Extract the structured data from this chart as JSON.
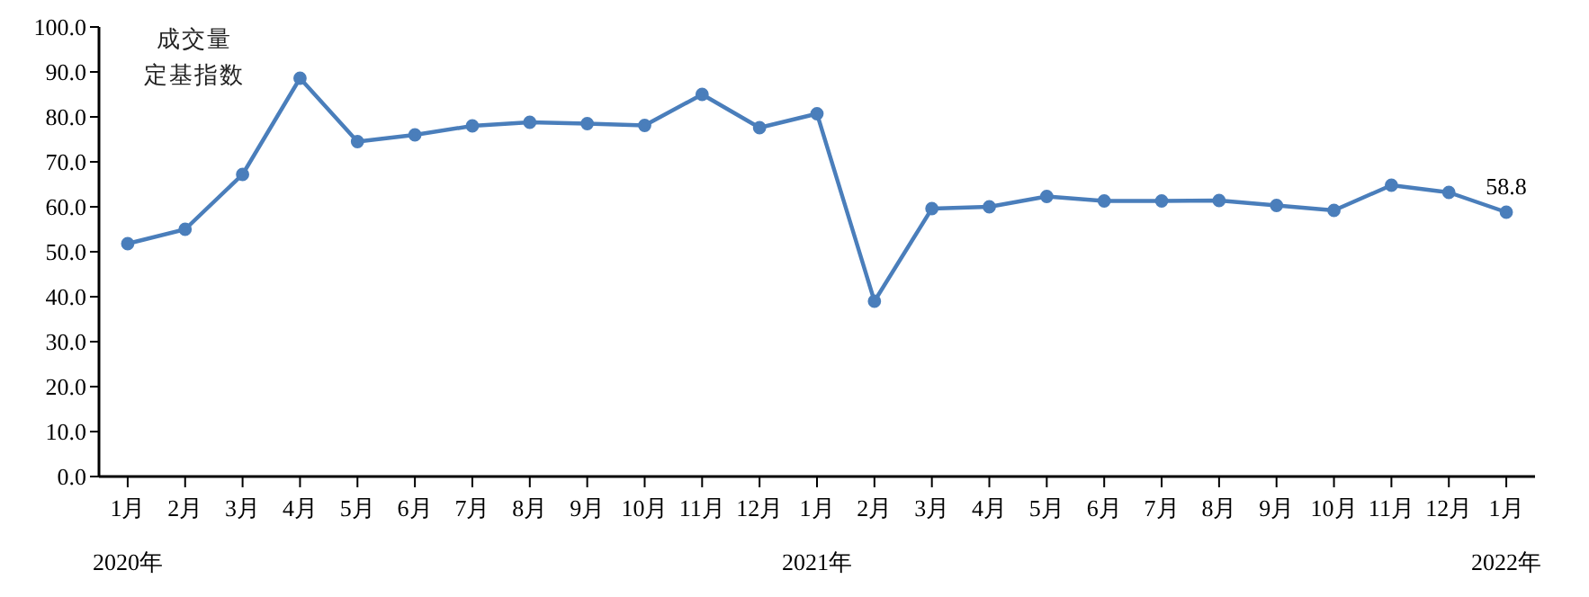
{
  "chart_data": {
    "type": "line",
    "ylabel": "成交量定基指数",
    "categories": [
      "1月\n2020年",
      "2月",
      "3月",
      "4月",
      "5月",
      "6月",
      "7月",
      "8月",
      "9月",
      "10月",
      "11月",
      "12月",
      "1月\n2021年",
      "2月",
      "3月",
      "4月",
      "5月",
      "6月",
      "7月",
      "8月",
      "9月",
      "10月",
      "11月",
      "12月",
      "1月\n2022年"
    ],
    "series": [
      {
        "color": "#4a7ebb",
        "values": [
          51.8,
          55.0,
          67.2,
          88.6,
          74.5,
          76.0,
          78.0,
          78.8,
          78.5,
          78.1,
          85.0,
          77.6,
          80.7,
          39.0,
          59.6,
          60.0,
          62.3,
          61.3,
          61.3,
          61.4,
          60.3,
          59.2,
          64.8,
          63.2,
          58.8
        ],
        "value_labels": [
          null,
          null,
          null,
          null,
          null,
          null,
          null,
          null,
          null,
          null,
          null,
          null,
          null,
          null,
          null,
          null,
          null,
          null,
          null,
          null,
          null,
          null,
          null,
          null,
          "58.8"
        ]
      }
    ],
    "ylim": [
      0,
      100
    ],
    "yticks": [
      {
        "value": 0,
        "label": "0.0"
      },
      {
        "value": 10,
        "label": "10.0"
      },
      {
        "value": 20,
        "label": "20.0"
      },
      {
        "value": 30,
        "label": "30.0"
      },
      {
        "value": 40,
        "label": "40.0"
      },
      {
        "value": 50,
        "label": "50.0"
      },
      {
        "value": 60,
        "label": "60.0"
      },
      {
        "value": 70,
        "label": "70.0"
      },
      {
        "value": 80,
        "label": "80.0"
      },
      {
        "value": 90,
        "label": "90.0"
      },
      {
        "value": 100,
        "label": "100.0"
      }
    ],
    "grid": false,
    "legend": false,
    "marker": "circle",
    "line_style": "solid"
  }
}
